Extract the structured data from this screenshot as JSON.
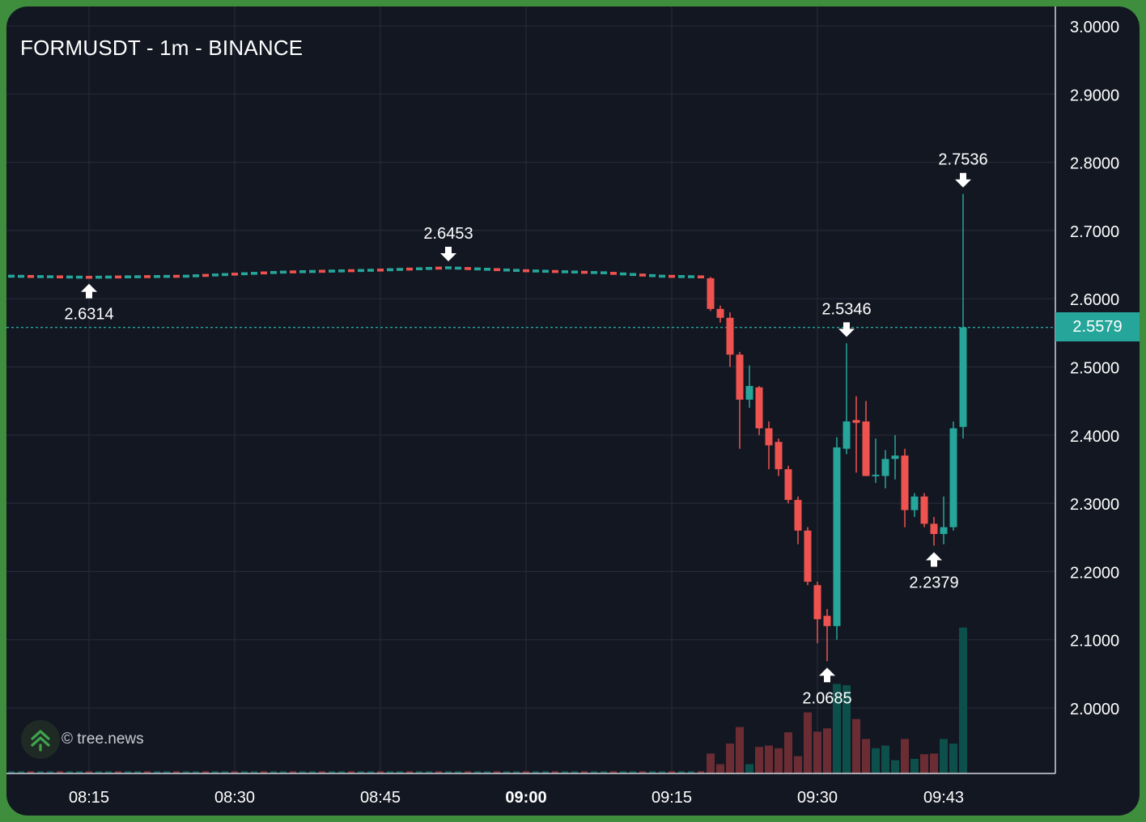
{
  "title": "FORMUSDT - 1m - BINANCE",
  "watermark": "© tree.news",
  "colors": {
    "background": "#131722",
    "grid": "#242a36",
    "up": "#26a69a",
    "down": "#ef5350",
    "up_volume": "#0d4f4a",
    "down_volume": "#6b2d33",
    "axis_text": "#ffffff"
  },
  "chart_data": {
    "type": "candlestick",
    "symbol": "FORMUSDT",
    "interval": "1m",
    "exchange": "BINANCE",
    "ylim": [
      1.905,
      3.03
    ],
    "y_ticks": [
      "3.0000",
      "2.9000",
      "2.8000",
      "2.7000",
      "2.6000",
      "2.5000",
      "2.4000",
      "2.3000",
      "2.2000",
      "2.1000",
      "2.0000"
    ],
    "x_ticks": [
      {
        "label": "08:15",
        "minute": 15
      },
      {
        "label": "08:30",
        "minute": 30
      },
      {
        "label": "08:45",
        "minute": 45
      },
      {
        "label": "09:00",
        "minute": 60,
        "bold": true
      },
      {
        "label": "09:15",
        "minute": 75
      },
      {
        "label": "09:30",
        "minute": 90
      },
      {
        "label": "09:43",
        "minute": 103
      }
    ],
    "current_price": "2.5579",
    "flat_segment": {
      "start_minute": 7,
      "end_minute": 78,
      "points": [
        [
          7,
          2.633
        ],
        [
          15,
          2.6314
        ],
        [
          25,
          2.633
        ],
        [
          35,
          2.639
        ],
        [
          45,
          2.642
        ],
        [
          52,
          2.6453
        ],
        [
          60,
          2.641
        ],
        [
          68,
          2.638
        ],
        [
          74,
          2.633
        ],
        [
          78,
          2.632
        ]
      ]
    },
    "candles": [
      {
        "m": 79,
        "o": 2.63,
        "h": 2.632,
        "l": 2.582,
        "c": 2.585,
        "v": 0.3
      },
      {
        "m": 80,
        "o": 2.585,
        "h": 2.59,
        "l": 2.565,
        "c": 2.572,
        "v": 0.14
      },
      {
        "m": 81,
        "o": 2.572,
        "h": 2.58,
        "l": 2.5,
        "c": 2.518,
        "v": 0.45
      },
      {
        "m": 82,
        "o": 2.518,
        "h": 2.522,
        "l": 2.38,
        "c": 2.452,
        "v": 0.7
      },
      {
        "m": 83,
        "o": 2.452,
        "h": 2.502,
        "l": 2.44,
        "c": 2.472,
        "v": 0.14
      },
      {
        "m": 84,
        "o": 2.47,
        "h": 2.472,
        "l": 2.4,
        "c": 2.41,
        "v": 0.4
      },
      {
        "m": 85,
        "o": 2.41,
        "h": 2.42,
        "l": 2.35,
        "c": 2.385,
        "v": 0.42
      },
      {
        "m": 86,
        "o": 2.39,
        "h": 2.395,
        "l": 2.34,
        "c": 2.35,
        "v": 0.38
      },
      {
        "m": 87,
        "o": 2.35,
        "h": 2.355,
        "l": 2.3,
        "c": 2.305,
        "v": 0.62
      },
      {
        "m": 88,
        "o": 2.305,
        "h": 2.31,
        "l": 2.24,
        "c": 2.26,
        "v": 0.26
      },
      {
        "m": 89,
        "o": 2.26,
        "h": 2.265,
        "l": 2.18,
        "c": 2.185,
        "v": 0.92
      },
      {
        "m": 90,
        "o": 2.18,
        "h": 2.185,
        "l": 2.095,
        "c": 2.13,
        "v": 0.63
      },
      {
        "m": 91,
        "o": 2.135,
        "h": 2.145,
        "l": 2.0685,
        "c": 2.12,
        "v": 0.68
      },
      {
        "m": 92,
        "o": 2.12,
        "h": 2.397,
        "l": 2.1,
        "c": 2.382,
        "v": 1.35
      },
      {
        "m": 93,
        "o": 2.38,
        "h": 2.5346,
        "l": 2.372,
        "c": 2.42,
        "v": 1.33
      },
      {
        "m": 94,
        "o": 2.422,
        "h": 2.457,
        "l": 2.345,
        "c": 2.418,
        "v": 0.82
      },
      {
        "m": 95,
        "o": 2.42,
        "h": 2.45,
        "l": 2.34,
        "c": 2.34,
        "v": 0.52
      },
      {
        "m": 96,
        "o": 2.34,
        "h": 2.395,
        "l": 2.33,
        "c": 2.342,
        "v": 0.38
      },
      {
        "m": 97,
        "o": 2.34,
        "h": 2.378,
        "l": 2.322,
        "c": 2.365,
        "v": 0.42
      },
      {
        "m": 98,
        "o": 2.365,
        "h": 2.4,
        "l": 2.335,
        "c": 2.37,
        "v": 0.2
      },
      {
        "m": 99,
        "o": 2.37,
        "h": 2.38,
        "l": 2.265,
        "c": 2.29,
        "v": 0.52
      },
      {
        "m": 100,
        "o": 2.29,
        "h": 2.315,
        "l": 2.28,
        "c": 2.31,
        "v": 0.22
      },
      {
        "m": 101,
        "o": 2.31,
        "h": 2.315,
        "l": 2.265,
        "c": 2.27,
        "v": 0.29
      },
      {
        "m": 102,
        "o": 2.27,
        "h": 2.28,
        "l": 2.2379,
        "c": 2.255,
        "v": 0.3
      },
      {
        "m": 103,
        "o": 2.255,
        "h": 2.31,
        "l": 2.24,
        "c": 2.265,
        "v": 0.52
      },
      {
        "m": 104,
        "o": 2.265,
        "h": 2.42,
        "l": 2.26,
        "c": 2.41,
        "v": 0.45
      },
      {
        "m": 105,
        "o": 2.412,
        "h": 2.7536,
        "l": 2.395,
        "c": 2.5579,
        "v": 2.2
      }
    ],
    "annotations": [
      {
        "label": "2.6314",
        "minute": 15,
        "price": 2.6314,
        "dir": "low"
      },
      {
        "label": "2.6453",
        "minute": 52,
        "price": 2.6453,
        "dir": "high"
      },
      {
        "label": "2.5346",
        "minute": 93,
        "price": 2.5346,
        "dir": "high"
      },
      {
        "label": "2.0685",
        "minute": 91,
        "price": 2.0685,
        "dir": "low"
      },
      {
        "label": "2.2379",
        "minute": 102,
        "price": 2.2379,
        "dir": "low"
      },
      {
        "label": "2.7536",
        "minute": 105,
        "price": 2.7536,
        "dir": "high"
      }
    ]
  }
}
